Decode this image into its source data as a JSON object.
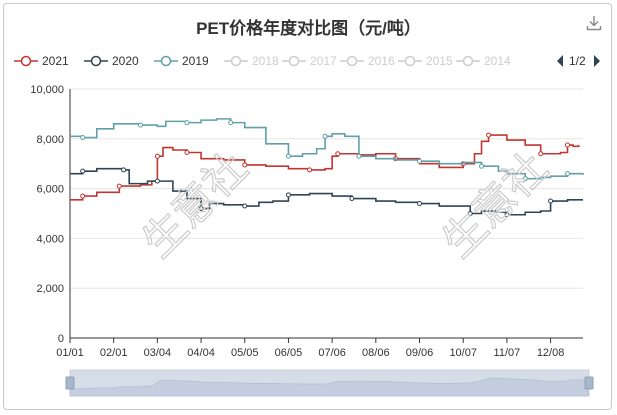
{
  "title": "PET价格年度对比图（元/吨）",
  "legend": {
    "items": [
      {
        "label": "2021",
        "color": "#c23531",
        "active": true
      },
      {
        "label": "2020",
        "color": "#2f4554",
        "active": true
      },
      {
        "label": "2019",
        "color": "#61a0a8",
        "active": true
      },
      {
        "label": "2018",
        "color": "#cccccc",
        "active": false
      },
      {
        "label": "2017",
        "color": "#cccccc",
        "active": false
      },
      {
        "label": "2016",
        "color": "#cccccc",
        "active": false
      },
      {
        "label": "2015",
        "color": "#cccccc",
        "active": false
      },
      {
        "label": "2014",
        "color": "#cccccc",
        "active": false
      }
    ],
    "page": "1/2"
  },
  "watermark": "生意社",
  "chart_data": {
    "type": "line",
    "title": "PET价格年度对比图（元/吨）",
    "xlabel": "",
    "ylabel": "",
    "x_ticks": [
      "01/01",
      "02/01",
      "03/04",
      "04/04",
      "05/05",
      "06/05",
      "07/06",
      "08/06",
      "09/06",
      "10/07",
      "11/07",
      "12/08"
    ],
    "x_range_days": [
      1,
      365
    ],
    "ylim": [
      0,
      10000
    ],
    "y_ticks": [
      "0",
      "2,000",
      "4,000",
      "6,000",
      "8,000",
      "10,000"
    ],
    "y_tick_values": [
      0,
      2000,
      4000,
      6000,
      8000,
      10000
    ],
    "grid": true,
    "legend_position": "top",
    "series": [
      {
        "name": "2021",
        "color": "#c23531",
        "points": [
          [
            "01/01",
            5550
          ],
          [
            "01/10",
            5700
          ],
          [
            "01/20",
            5850
          ],
          [
            "02/01",
            5850
          ],
          [
            "02/05",
            6100
          ],
          [
            "02/20",
            6150
          ],
          [
            "02/28",
            6300
          ],
          [
            "03/04",
            7300
          ],
          [
            "03/08",
            7650
          ],
          [
            "03/15",
            7550
          ],
          [
            "03/25",
            7450
          ],
          [
            "04/04",
            7200
          ],
          [
            "04/20",
            7150
          ],
          [
            "05/05",
            6950
          ],
          [
            "05/20",
            6900
          ],
          [
            "06/05",
            6800
          ],
          [
            "06/20",
            6750
          ],
          [
            "07/01",
            6800
          ],
          [
            "07/06",
            7300
          ],
          [
            "07/10",
            7400
          ],
          [
            "07/25",
            7350
          ],
          [
            "08/06",
            7400
          ],
          [
            "08/20",
            7200
          ],
          [
            "09/06",
            7000
          ],
          [
            "09/20",
            6850
          ],
          [
            "10/07",
            7000
          ],
          [
            "10/15",
            7400
          ],
          [
            "10/20",
            7900
          ],
          [
            "10/25",
            8150
          ],
          [
            "11/07",
            7950
          ],
          [
            "11/20",
            7750
          ],
          [
            "12/01",
            7400
          ],
          [
            "12/08",
            7400
          ],
          [
            "12/15",
            7450
          ],
          [
            "12/20",
            7750
          ],
          [
            "12/24",
            7700
          ],
          [
            "12/28",
            7750
          ]
        ]
      },
      {
        "name": "2020",
        "color": "#2f4554",
        "points": [
          [
            "01/01",
            6600
          ],
          [
            "01/10",
            6700
          ],
          [
            "01/20",
            6800
          ],
          [
            "02/01",
            6800
          ],
          [
            "02/08",
            6750
          ],
          [
            "02/12",
            6200
          ],
          [
            "02/25",
            6300
          ],
          [
            "03/04",
            6300
          ],
          [
            "03/15",
            5900
          ],
          [
            "03/25",
            5600
          ],
          [
            "04/04",
            5200
          ],
          [
            "04/10",
            5400
          ],
          [
            "04/20",
            5350
          ],
          [
            "05/05",
            5300
          ],
          [
            "05/15",
            5450
          ],
          [
            "05/25",
            5500
          ],
          [
            "06/05",
            5750
          ],
          [
            "06/20",
            5800
          ],
          [
            "07/06",
            5700
          ],
          [
            "07/20",
            5600
          ],
          [
            "08/06",
            5500
          ],
          [
            "08/20",
            5450
          ],
          [
            "09/06",
            5400
          ],
          [
            "09/20",
            5300
          ],
          [
            "10/07",
            5300
          ],
          [
            "10/12",
            5000
          ],
          [
            "10/20",
            5100
          ],
          [
            "10/30",
            5050
          ],
          [
            "11/07",
            4950
          ],
          [
            "11/20",
            5050
          ],
          [
            "12/01",
            5100
          ],
          [
            "12/08",
            5500
          ],
          [
            "12/20",
            5550
          ],
          [
            "12/31",
            5550
          ]
        ]
      },
      {
        "name": "2019",
        "color": "#61a0a8",
        "points": [
          [
            "01/01",
            8100
          ],
          [
            "01/10",
            8050
          ],
          [
            "01/20",
            8400
          ],
          [
            "02/01",
            8600
          ],
          [
            "02/20",
            8550
          ],
          [
            "03/04",
            8500
          ],
          [
            "03/10",
            8700
          ],
          [
            "03/25",
            8650
          ],
          [
            "04/04",
            8750
          ],
          [
            "04/15",
            8800
          ],
          [
            "04/25",
            8650
          ],
          [
            "05/05",
            8450
          ],
          [
            "05/20",
            7800
          ],
          [
            "06/05",
            7300
          ],
          [
            "06/15",
            7400
          ],
          [
            "06/25",
            7600
          ],
          [
            "07/01",
            8100
          ],
          [
            "07/06",
            8200
          ],
          [
            "07/15",
            8100
          ],
          [
            "07/25",
            7300
          ],
          [
            "08/06",
            7200
          ],
          [
            "08/20",
            7150
          ],
          [
            "09/06",
            7100
          ],
          [
            "09/20",
            7000
          ],
          [
            "10/07",
            7050
          ],
          [
            "10/20",
            6900
          ],
          [
            "11/01",
            6700
          ],
          [
            "11/07",
            6600
          ],
          [
            "11/20",
            6400
          ],
          [
            "12/01",
            6450
          ],
          [
            "12/08",
            6500
          ],
          [
            "12/20",
            6600
          ],
          [
            "12/31",
            6550
          ]
        ]
      }
    ]
  }
}
